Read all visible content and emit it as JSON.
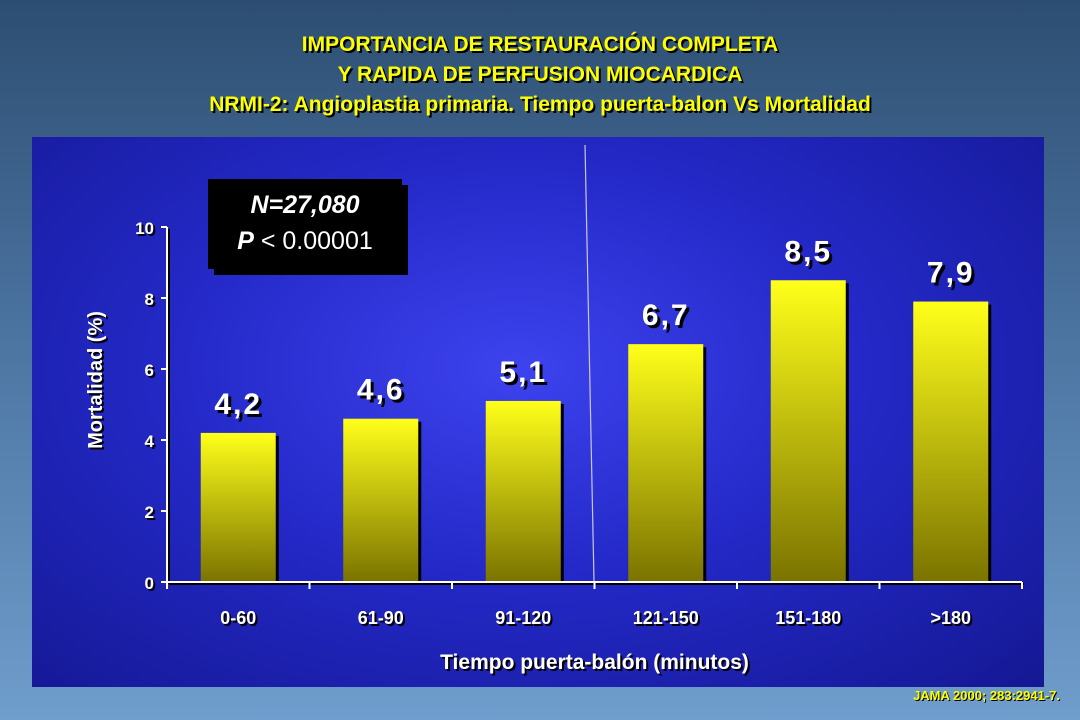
{
  "title": {
    "line1": "IMPORTANCIA DE RESTAURACIÓN COMPLETA",
    "line2": "Y RAPIDA DE PERFUSION MIOCARDICA",
    "line3": "NRMI-2:  Angioplastia primaria.  Tiempo puerta-balon Vs Mortalidad"
  },
  "stats": {
    "n_text": "N=27,080",
    "p_letter": "P",
    "p_text": " < 0.00001"
  },
  "source": "JAMA 2000; 283:2941-7.",
  "colors": {
    "bar_top": "#ffff1a",
    "bar_bottom": "#7a7300",
    "label_white": "#ffffff",
    "title_yellow": "#ffff00"
  },
  "chart_data": {
    "type": "bar",
    "categories": [
      "0-60",
      "61-90",
      "91-120",
      "121-150",
      "151-180",
      ">180"
    ],
    "values": [
      4.2,
      4.6,
      5.1,
      6.7,
      8.5,
      7.9
    ],
    "data_labels": [
      "4,2",
      "4,6",
      "5,1",
      "6,7",
      "8,5",
      "7,9"
    ],
    "yticks": [
      0,
      2,
      4,
      6,
      8,
      10
    ],
    "ylim": [
      0,
      10
    ],
    "ylabel": "Mortalidad (%)",
    "xlabel": "Tiempo puerta-balón (minutos)",
    "grid": false
  }
}
